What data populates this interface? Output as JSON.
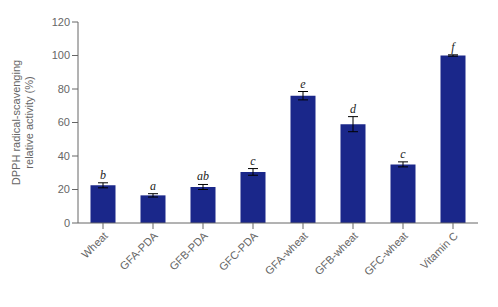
{
  "chart_data": {
    "type": "bar",
    "categories": [
      "Wheat",
      "GFA-PDA",
      "GFB-PDA",
      "GFC-PDA",
      "GFA-wheat",
      "GFB-wheat",
      "GFC-wheat",
      "Vitamin C"
    ],
    "values": [
      22.5,
      16.5,
      21.5,
      30.5,
      76.0,
      59.0,
      35.0,
      100.0
    ],
    "errors": [
      1.5,
      1.0,
      1.5,
      2.0,
      2.5,
      4.5,
      1.5,
      0.4
    ],
    "annotations": [
      "b",
      "a",
      "ab",
      "c",
      "e",
      "d",
      "c",
      "f"
    ],
    "color": "#1a278a",
    "ylabel": "DPPH radical-scavenging\nrelative activity (%)",
    "ylim": [
      0,
      120
    ],
    "yticks": [
      0,
      20,
      40,
      60,
      80,
      100,
      120
    ],
    "grid": false
  }
}
